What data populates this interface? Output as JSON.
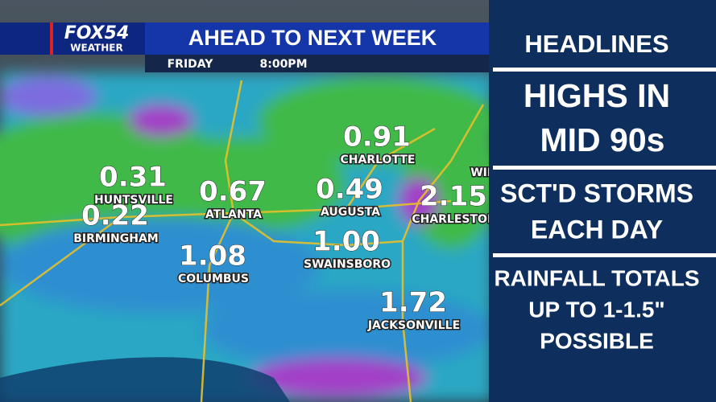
{
  "header": {
    "logo": "FOX54",
    "logo_sub": "WEATHER",
    "title": "AHEAD TO NEXT WEEK",
    "day": "FRIDAY",
    "time": "8:00PM"
  },
  "map": {
    "cities": [
      {
        "name": "CHARLOTTE",
        "value": "0.91"
      },
      {
        "name": "HUNTSVILLE",
        "value": "0.31"
      },
      {
        "name": "BIRMINGHAM",
        "value": "0.22"
      },
      {
        "name": "ATLANTA",
        "value": "0.67"
      },
      {
        "name": "AUGUSTA",
        "value": "0.49"
      },
      {
        "name": "CHARLESTON",
        "value": "2.15"
      },
      {
        "name": "COLUMBUS",
        "value": "1.08"
      },
      {
        "name": "SWAINSBORO",
        "value": "1.00"
      },
      {
        "name": "JACKSONVILLE",
        "value": "1.72"
      },
      {
        "name": "WIL"
      }
    ]
  },
  "sidebar": {
    "heading": "HEADLINES",
    "panels": [
      {
        "lines": [
          "HIGHS IN",
          "MID 90s"
        ]
      },
      {
        "lines": [
          "SCT'D STORMS",
          "EACH DAY"
        ]
      },
      {
        "lines": [
          "RAINFALL TOTALS",
          "UP TO 1-1.5\"",
          "POSSIBLE"
        ]
      }
    ]
  }
}
